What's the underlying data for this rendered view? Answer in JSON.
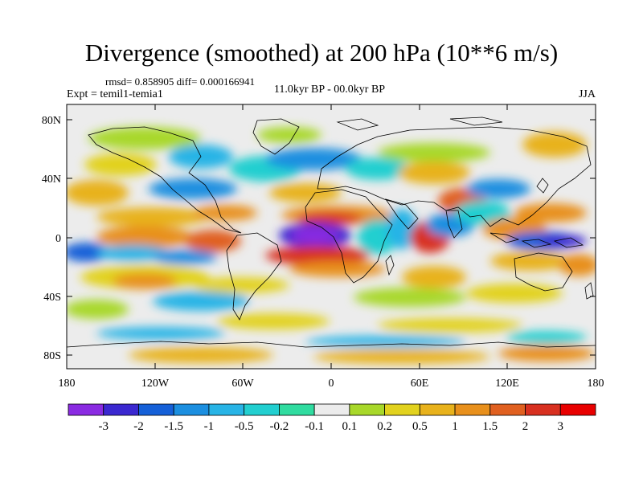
{
  "title": "Divergence (smoothed) at 200 hPa (10**6 m/s)",
  "stats_text": "rmsd= 0.858905 diff= 0.000166941",
  "left_label": "Expt = temil1-temia1",
  "center_label": "11.0kyr BP - 00.0kyr BP",
  "right_label": "JJA",
  "lat_ticks": [
    "80N",
    "40N",
    "0",
    "40S",
    "80S"
  ],
  "lon_ticks": [
    "180",
    "120W",
    "60W",
    "0",
    "60E",
    "120E",
    "180"
  ],
  "colorbar": {
    "labels": [
      "-3",
      "-2",
      "-1.5",
      "-1",
      "-0.5",
      "-0.2",
      "-0.1",
      "0.1",
      "0.2",
      "0.5",
      "1",
      "1.5",
      "2",
      "3"
    ],
    "colors": [
      "#8a2be2",
      "#3b28d0",
      "#1560d8",
      "#1c8fe0",
      "#28b4e6",
      "#22cfd0",
      "#30dca0",
      "#ececec",
      "#a8d82a",
      "#e2d21e",
      "#e8b21c",
      "#e8901c",
      "#e06020",
      "#d83020",
      "#e80000"
    ]
  }
}
